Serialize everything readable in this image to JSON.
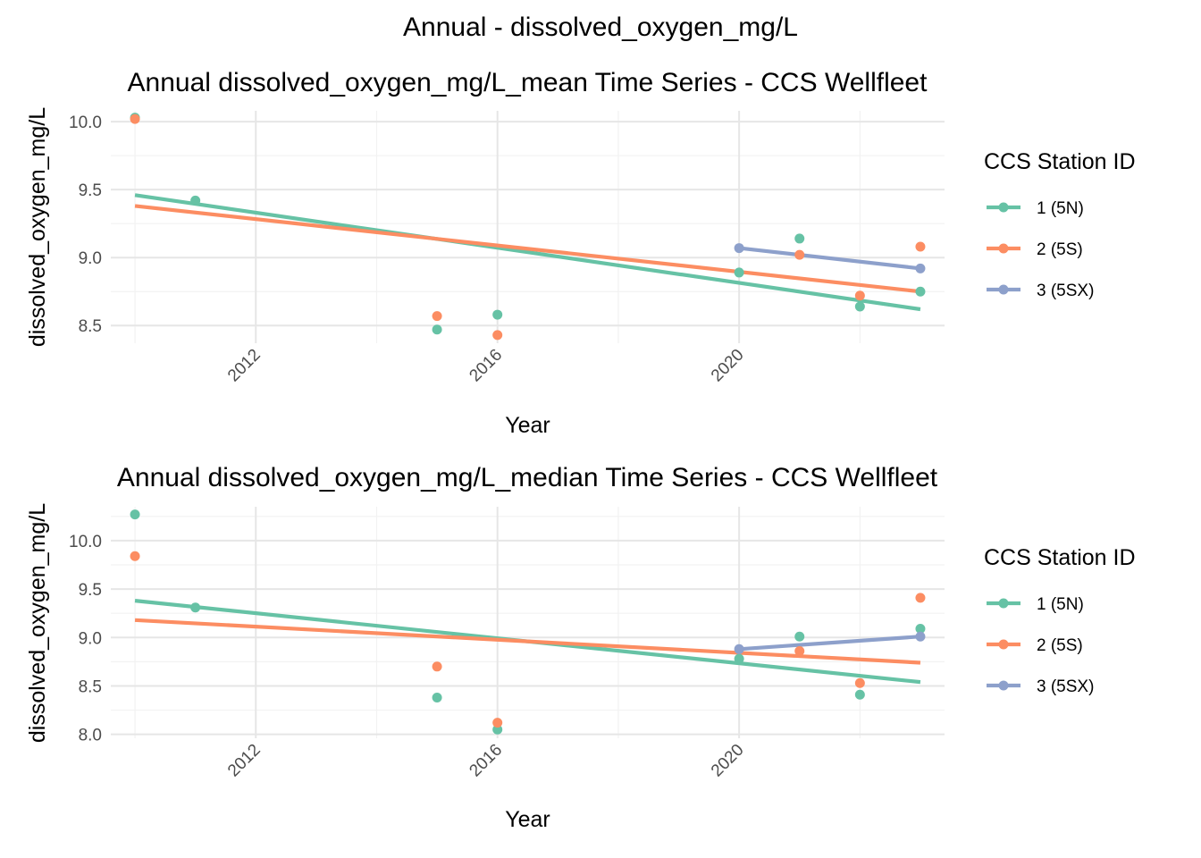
{
  "page": {
    "title": "Annual - dissolved_oxygen_mg/L"
  },
  "colors": {
    "1 (5N)": "#66C2A5",
    "2 (5S)": "#FC8D62",
    "3 (5SX)": "#8DA0CB",
    "grid": "#EBEBEB",
    "text": "#000000",
    "tick_text": "#4D4D4D"
  },
  "chart_data": [
    {
      "type": "scatter",
      "title": "Annual dissolved_oxygen_mg/L_mean Time Series - CCS Wellfleet",
      "xlabel": "Year",
      "ylabel": "dissolved_oxygen_mg/L",
      "xlim": [
        2009.6,
        2023.4
      ],
      "ylim": [
        8.37,
        10.08
      ],
      "x_ticks": [
        2012,
        2016,
        2020
      ],
      "x_minor_ticks": [
        2010,
        2014,
        2018,
        2022
      ],
      "y_ticks": [
        8.5,
        9.0,
        9.5,
        10.0
      ],
      "y_tick_labels": [
        "8.5",
        "9.0",
        "9.5",
        "10.0"
      ],
      "y_minor_ticks": [
        8.75,
        9.25,
        9.75
      ],
      "grid": true,
      "legend": {
        "title": "CCS Station ID",
        "position": "right",
        "entries": [
          "1 (5N)",
          "2 (5S)",
          "3 (5SX)"
        ]
      },
      "series": [
        {
          "name": "1 (5N)",
          "color": "#66C2A5",
          "points": [
            [
              2010,
              10.03
            ],
            [
              2011,
              9.42
            ],
            [
              2015,
              8.47
            ],
            [
              2016,
              8.58
            ],
            [
              2020,
              8.89
            ],
            [
              2021,
              9.14
            ],
            [
              2022,
              8.64
            ],
            [
              2023,
              8.75
            ]
          ],
          "trend": [
            [
              2010,
              9.46
            ],
            [
              2023,
              8.62
            ]
          ]
        },
        {
          "name": "2 (5S)",
          "color": "#FC8D62",
          "points": [
            [
              2010,
              10.02
            ],
            [
              2015,
              8.57
            ],
            [
              2016,
              8.43
            ],
            [
              2021,
              9.02
            ],
            [
              2022,
              8.72
            ],
            [
              2023,
              9.08
            ]
          ],
          "trend": [
            [
              2010,
              9.38
            ],
            [
              2023,
              8.75
            ]
          ]
        },
        {
          "name": "3 (5SX)",
          "color": "#8DA0CB",
          "points": [
            [
              2020,
              9.07
            ],
            [
              2023,
              8.92
            ]
          ],
          "trend": [
            [
              2020,
              9.07
            ],
            [
              2023,
              8.92
            ]
          ]
        }
      ]
    },
    {
      "type": "scatter",
      "title": "Annual dissolved_oxygen_mg/L_median Time Series - CCS Wellfleet",
      "xlabel": "Year",
      "ylabel": "dissolved_oxygen_mg/L",
      "xlim": [
        2009.6,
        2023.4
      ],
      "ylim": [
        7.96,
        10.35
      ],
      "x_ticks": [
        2012,
        2016,
        2020
      ],
      "x_minor_ticks": [
        2010,
        2014,
        2018,
        2022
      ],
      "y_ticks": [
        8.0,
        8.5,
        9.0,
        9.5,
        10.0
      ],
      "y_tick_labels": [
        "8.0",
        "8.5",
        "9.0",
        "9.5",
        "10.0"
      ],
      "y_minor_ticks": [
        8.25,
        8.75,
        9.25,
        9.75,
        10.25
      ],
      "grid": true,
      "legend": {
        "title": "CCS Station ID",
        "position": "right",
        "entries": [
          "1 (5N)",
          "2 (5S)",
          "3 (5SX)"
        ]
      },
      "series": [
        {
          "name": "1 (5N)",
          "color": "#66C2A5",
          "points": [
            [
              2010,
              10.27
            ],
            [
              2011,
              9.31
            ],
            [
              2015,
              8.38
            ],
            [
              2016,
              8.05
            ],
            [
              2020,
              8.78
            ],
            [
              2021,
              9.01
            ],
            [
              2022,
              8.41
            ],
            [
              2023,
              9.09
            ]
          ],
          "trend": [
            [
              2010,
              9.38
            ],
            [
              2023,
              8.54
            ]
          ]
        },
        {
          "name": "2 (5S)",
          "color": "#FC8D62",
          "points": [
            [
              2010,
              9.84
            ],
            [
              2015,
              8.7
            ],
            [
              2016,
              8.12
            ],
            [
              2021,
              8.86
            ],
            [
              2022,
              8.53
            ],
            [
              2023,
              9.41
            ]
          ],
          "trend": [
            [
              2010,
              9.18
            ],
            [
              2023,
              8.74
            ]
          ]
        },
        {
          "name": "3 (5SX)",
          "color": "#8DA0CB",
          "points": [
            [
              2020,
              8.88
            ],
            [
              2023,
              9.01
            ]
          ],
          "trend": [
            [
              2020,
              8.88
            ],
            [
              2023,
              9.01
            ]
          ]
        }
      ]
    }
  ]
}
